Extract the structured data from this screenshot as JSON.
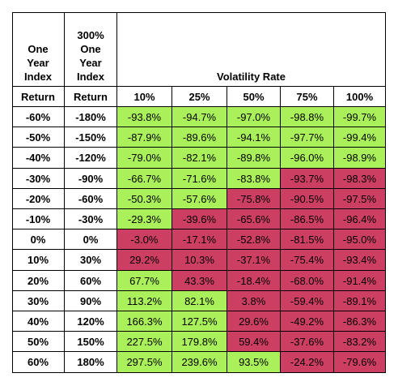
{
  "headers": {
    "col1": [
      "One",
      "Year",
      "Index"
    ],
    "col2": [
      "300%",
      "One",
      "Year",
      "Index"
    ],
    "volatility": "Volatility Rate",
    "subheader_col1": "Return",
    "subheader_col2": "Return",
    "volatility_levels": [
      "10%",
      "25%",
      "50%",
      "75%",
      "100%"
    ]
  },
  "colors": {
    "positive": "#aaf05a",
    "negative": "#cd3f62"
  },
  "rows": [
    {
      "index": "-60%",
      "leveraged": "-180%",
      "values": [
        "-93.8%",
        "-94.7%",
        "-97.0%",
        "-98.8%",
        "-99.7%"
      ],
      "status": [
        "g",
        "g",
        "g",
        "g",
        "g"
      ]
    },
    {
      "index": "-50%",
      "leveraged": "-150%",
      "values": [
        "-87.9%",
        "-89.6%",
        "-94.1%",
        "-97.7%",
        "-99.4%"
      ],
      "status": [
        "g",
        "g",
        "g",
        "g",
        "g"
      ]
    },
    {
      "index": "-40%",
      "leveraged": "-120%",
      "values": [
        "-79.0%",
        "-82.1%",
        "-89.8%",
        "-96.0%",
        "-98.9%"
      ],
      "status": [
        "g",
        "g",
        "g",
        "g",
        "g"
      ]
    },
    {
      "index": "-30%",
      "leveraged": "-90%",
      "values": [
        "-66.7%",
        "-71.6%",
        "-83.8%",
        "-93.7%",
        "-98.3%"
      ],
      "status": [
        "g",
        "g",
        "g",
        "r",
        "r"
      ]
    },
    {
      "index": "-20%",
      "leveraged": "-60%",
      "values": [
        "-50.3%",
        "-57.6%",
        "-75.8%",
        "-90.5%",
        "-97.5%"
      ],
      "status": [
        "g",
        "g",
        "r",
        "r",
        "r"
      ]
    },
    {
      "index": "-10%",
      "leveraged": "-30%",
      "values": [
        "-29.3%",
        "-39.6%",
        "-65.6%",
        "-86.5%",
        "-96.4%"
      ],
      "status": [
        "g",
        "r",
        "r",
        "r",
        "r"
      ]
    },
    {
      "index": "0%",
      "leveraged": "0%",
      "values": [
        "-3.0%",
        "-17.1%",
        "-52.8%",
        "-81.5%",
        "-95.0%"
      ],
      "status": [
        "r",
        "r",
        "r",
        "r",
        "r"
      ]
    },
    {
      "index": "10%",
      "leveraged": "30%",
      "values": [
        "29.2%",
        "10.3%",
        "-37.1%",
        "-75.4%",
        "-93.4%"
      ],
      "status": [
        "r",
        "r",
        "r",
        "r",
        "r"
      ]
    },
    {
      "index": "20%",
      "leveraged": "60%",
      "values": [
        "67.7%",
        "43.3%",
        "-18.4%",
        "-68.0%",
        "-91.4%"
      ],
      "status": [
        "g",
        "r",
        "r",
        "r",
        "r"
      ]
    },
    {
      "index": "30%",
      "leveraged": "90%",
      "values": [
        "113.2%",
        "82.1%",
        "3.8%",
        "-59.4%",
        "-89.1%"
      ],
      "status": [
        "g",
        "g",
        "r",
        "r",
        "r"
      ]
    },
    {
      "index": "40%",
      "leveraged": "120%",
      "values": [
        "166.3%",
        "127.5%",
        "29.6%",
        "-49.2%",
        "-86.3%"
      ],
      "status": [
        "g",
        "g",
        "r",
        "r",
        "r"
      ]
    },
    {
      "index": "50%",
      "leveraged": "150%",
      "values": [
        "227.5%",
        "179.8%",
        "59.4%",
        "-37.6%",
        "-83.2%"
      ],
      "status": [
        "g",
        "g",
        "r",
        "r",
        "r"
      ]
    },
    {
      "index": "60%",
      "leveraged": "180%",
      "values": [
        "297.5%",
        "239.6%",
        "93.5%",
        "-24.2%",
        "-79.6%"
      ],
      "status": [
        "g",
        "g",
        "g",
        "r",
        "r"
      ]
    }
  ]
}
